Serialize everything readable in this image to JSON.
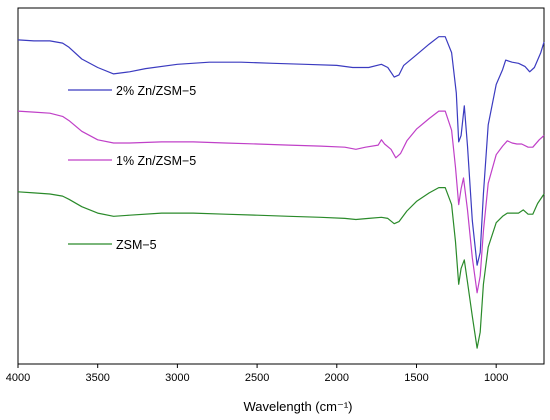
{
  "chart_data": {
    "type": "line",
    "title": "",
    "xlabel": "Wavelength (cm⁻¹)",
    "ylabel": "",
    "xlim": [
      4000,
      700
    ],
    "x_reversed": true,
    "ylim": [
      -0.05,
      3.3
    ],
    "y_axis_labels_shown": false,
    "grid": false,
    "legend": "inline labels, left side",
    "x_ticks": [
      4000,
      3500,
      3000,
      2500,
      2000,
      1500,
      1000
    ],
    "x_tick_labels": [
      "4000",
      "3500",
      "3000",
      "2500",
      "2000",
      "1500",
      "1000"
    ],
    "series": [
      {
        "name": "2% Zn/ZSM−5",
        "color": "#3b3bc0",
        "points": [
          [
            4000,
            3.0
          ],
          [
            3900,
            2.99
          ],
          [
            3800,
            2.99
          ],
          [
            3720,
            2.97
          ],
          [
            3680,
            2.93
          ],
          [
            3600,
            2.82
          ],
          [
            3500,
            2.74
          ],
          [
            3400,
            2.68
          ],
          [
            3300,
            2.7
          ],
          [
            3200,
            2.73
          ],
          [
            3000,
            2.77
          ],
          [
            2800,
            2.79
          ],
          [
            2600,
            2.79
          ],
          [
            2400,
            2.78
          ],
          [
            2200,
            2.77
          ],
          [
            2000,
            2.76
          ],
          [
            1900,
            2.74
          ],
          [
            1800,
            2.74
          ],
          [
            1720,
            2.77
          ],
          [
            1680,
            2.74
          ],
          [
            1640,
            2.65
          ],
          [
            1610,
            2.67
          ],
          [
            1580,
            2.76
          ],
          [
            1500,
            2.86
          ],
          [
            1420,
            2.96
          ],
          [
            1360,
            3.03
          ],
          [
            1320,
            3.03
          ],
          [
            1280,
            2.88
          ],
          [
            1250,
            2.5
          ],
          [
            1235,
            2.04
          ],
          [
            1220,
            2.1
          ],
          [
            1200,
            2.38
          ],
          [
            1180,
            2.0
          ],
          [
            1150,
            1.3
          ],
          [
            1120,
            0.88
          ],
          [
            1100,
            1.0
          ],
          [
            1080,
            1.55
          ],
          [
            1050,
            2.2
          ],
          [
            1000,
            2.58
          ],
          [
            960,
            2.72
          ],
          [
            940,
            2.81
          ],
          [
            900,
            2.79
          ],
          [
            860,
            2.78
          ],
          [
            820,
            2.75
          ],
          [
            790,
            2.7
          ],
          [
            760,
            2.74
          ],
          [
            720,
            2.88
          ],
          [
            700,
            2.98
          ]
        ]
      },
      {
        "name": "1% Zn/ZSM−5",
        "color": "#c040c8",
        "points": [
          [
            4000,
            2.33
          ],
          [
            3900,
            2.32
          ],
          [
            3800,
            2.31
          ],
          [
            3720,
            2.28
          ],
          [
            3680,
            2.24
          ],
          [
            3600,
            2.14
          ],
          [
            3500,
            2.06
          ],
          [
            3400,
            2.03
          ],
          [
            3300,
            2.03
          ],
          [
            3100,
            2.04
          ],
          [
            2900,
            2.04
          ],
          [
            2700,
            2.03
          ],
          [
            2500,
            2.02
          ],
          [
            2300,
            2.01
          ],
          [
            2100,
            2.0
          ],
          [
            1950,
            1.99
          ],
          [
            1880,
            1.97
          ],
          [
            1820,
            1.99
          ],
          [
            1740,
            2.01
          ],
          [
            1720,
            2.06
          ],
          [
            1700,
            2.02
          ],
          [
            1660,
            1.97
          ],
          [
            1630,
            1.89
          ],
          [
            1600,
            1.93
          ],
          [
            1560,
            2.05
          ],
          [
            1500,
            2.16
          ],
          [
            1420,
            2.26
          ],
          [
            1360,
            2.33
          ],
          [
            1320,
            2.33
          ],
          [
            1280,
            2.15
          ],
          [
            1255,
            1.8
          ],
          [
            1235,
            1.45
          ],
          [
            1220,
            1.6
          ],
          [
            1205,
            1.7
          ],
          [
            1180,
            1.4
          ],
          [
            1150,
            0.95
          ],
          [
            1120,
            0.62
          ],
          [
            1100,
            0.78
          ],
          [
            1080,
            1.2
          ],
          [
            1050,
            1.65
          ],
          [
            1000,
            1.92
          ],
          [
            960,
            2.0
          ],
          [
            930,
            2.05
          ],
          [
            900,
            2.03
          ],
          [
            870,
            2.02
          ],
          [
            840,
            2.02
          ],
          [
            800,
            1.99
          ],
          [
            770,
            1.99
          ],
          [
            730,
            2.06
          ],
          [
            700,
            2.1
          ]
        ]
      },
      {
        "name": "ZSM−5",
        "color": "#2a8a2a",
        "points": [
          [
            4000,
            1.57
          ],
          [
            3900,
            1.56
          ],
          [
            3800,
            1.55
          ],
          [
            3720,
            1.53
          ],
          [
            3680,
            1.5
          ],
          [
            3600,
            1.43
          ],
          [
            3500,
            1.37
          ],
          [
            3400,
            1.34
          ],
          [
            3300,
            1.35
          ],
          [
            3100,
            1.37
          ],
          [
            2900,
            1.37
          ],
          [
            2700,
            1.36
          ],
          [
            2500,
            1.35
          ],
          [
            2300,
            1.34
          ],
          [
            2100,
            1.33
          ],
          [
            1950,
            1.32
          ],
          [
            1880,
            1.31
          ],
          [
            1800,
            1.32
          ],
          [
            1720,
            1.33
          ],
          [
            1680,
            1.32
          ],
          [
            1640,
            1.27
          ],
          [
            1610,
            1.29
          ],
          [
            1560,
            1.39
          ],
          [
            1500,
            1.48
          ],
          [
            1420,
            1.56
          ],
          [
            1360,
            1.61
          ],
          [
            1320,
            1.61
          ],
          [
            1280,
            1.45
          ],
          [
            1255,
            1.1
          ],
          [
            1235,
            0.7
          ],
          [
            1220,
            0.85
          ],
          [
            1200,
            0.93
          ],
          [
            1180,
            0.72
          ],
          [
            1150,
            0.4
          ],
          [
            1120,
            0.1
          ],
          [
            1100,
            0.25
          ],
          [
            1080,
            0.7
          ],
          [
            1050,
            1.05
          ],
          [
            1000,
            1.28
          ],
          [
            960,
            1.34
          ],
          [
            930,
            1.37
          ],
          [
            900,
            1.37
          ],
          [
            860,
            1.37
          ],
          [
            830,
            1.4
          ],
          [
            800,
            1.36
          ],
          [
            770,
            1.36
          ],
          [
            740,
            1.46
          ],
          [
            700,
            1.55
          ]
        ]
      }
    ]
  }
}
